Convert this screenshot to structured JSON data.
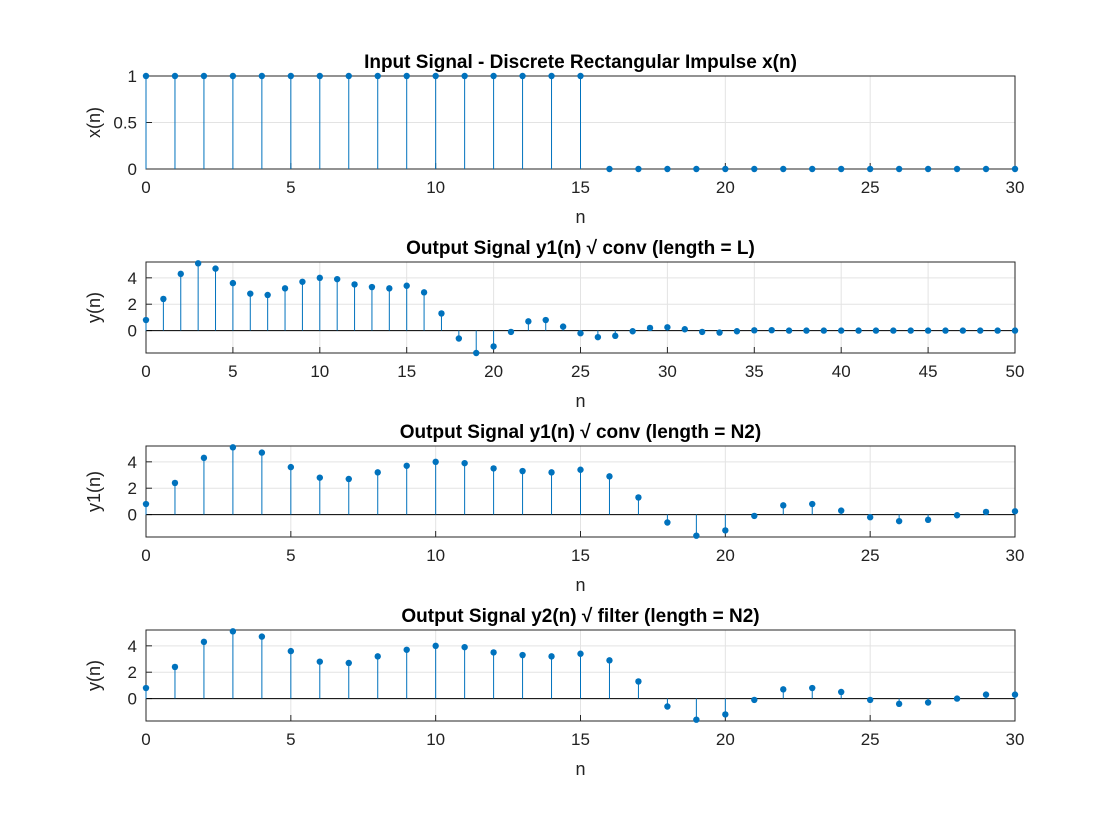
{
  "chart_data": [
    {
      "type": "stem",
      "title": "Input Signal - Discrete Rectangular Impulse x(n)",
      "xlabel": "n",
      "ylabel": "x(n)",
      "xlim": [
        0,
        30
      ],
      "ylim": [
        0,
        1
      ],
      "xticks": [
        "0",
        "5",
        "10",
        "15",
        "20",
        "25",
        "30"
      ],
      "yticks": [
        "0",
        "0.5",
        "1"
      ],
      "grid": true,
      "color": "#0072BD",
      "x": [
        0,
        1,
        2,
        3,
        4,
        5,
        6,
        7,
        8,
        9,
        10,
        11,
        12,
        13,
        14,
        15,
        16,
        17,
        18,
        19,
        20,
        21,
        22,
        23,
        24,
        25,
        26,
        27,
        28,
        29,
        30
      ],
      "values": [
        1,
        1,
        1,
        1,
        1,
        1,
        1,
        1,
        1,
        1,
        1,
        1,
        1,
        1,
        1,
        1,
        0,
        0,
        0,
        0,
        0,
        0,
        0,
        0,
        0,
        0,
        0,
        0,
        0,
        0,
        0
      ]
    },
    {
      "type": "stem",
      "title": "Output Signal y1(n) √ conv (length = L)",
      "xlabel": "n",
      "ylabel": "y(n)",
      "xlim": [
        0,
        50
      ],
      "ylim": [
        -1.7,
        5.2
      ],
      "xticks": [
        "0",
        "5",
        "10",
        "15",
        "20",
        "25",
        "30",
        "35",
        "40",
        "45",
        "50"
      ],
      "yticks": [
        "0",
        "2",
        "4"
      ],
      "grid": true,
      "color": "#0072BD",
      "x": [
        0,
        1,
        2,
        3,
        4,
        5,
        6,
        7,
        8,
        9,
        10,
        11,
        12,
        13,
        14,
        15,
        16,
        17,
        18,
        19,
        20,
        21,
        22,
        23,
        24,
        25,
        26,
        27,
        28,
        29,
        30,
        31,
        32,
        33,
        34,
        35,
        36,
        37,
        38,
        39,
        40,
        41,
        42,
        43,
        44,
        45,
        46,
        47,
        48,
        49,
        50
      ],
      "values": [
        0.8,
        2.4,
        4.3,
        5.1,
        4.7,
        3.6,
        2.8,
        2.7,
        3.2,
        3.7,
        4.0,
        3.9,
        3.5,
        3.3,
        3.2,
        3.4,
        2.9,
        1.3,
        -0.6,
        -1.7,
        -1.2,
        -0.1,
        0.7,
        0.8,
        0.3,
        -0.2,
        -0.5,
        -0.4,
        -0.05,
        0.2,
        0.25,
        0.1,
        -0.1,
        -0.15,
        -0.05,
        0.02,
        0.03,
        0,
        0,
        0,
        0,
        0,
        0,
        0,
        0,
        0,
        0,
        0,
        0,
        0,
        0
      ]
    },
    {
      "type": "stem",
      "title": "Output Signal y1(n) √ conv (length = N2)",
      "xlabel": "n",
      "ylabel": "y1(n)",
      "xlim": [
        0,
        30
      ],
      "ylim": [
        -1.7,
        5.2
      ],
      "xticks": [
        "0",
        "5",
        "10",
        "15",
        "20",
        "25",
        "30"
      ],
      "yticks": [
        "0",
        "2",
        "4"
      ],
      "grid": true,
      "color": "#0072BD",
      "x": [
        0,
        1,
        2,
        3,
        4,
        5,
        6,
        7,
        8,
        9,
        10,
        11,
        12,
        13,
        14,
        15,
        16,
        17,
        18,
        19,
        20,
        21,
        22,
        23,
        24,
        25,
        26,
        27,
        28,
        29,
        30
      ],
      "values": [
        0.8,
        2.4,
        4.3,
        5.1,
        4.7,
        3.6,
        2.8,
        2.7,
        3.2,
        3.7,
        4.0,
        3.9,
        3.5,
        3.3,
        3.2,
        3.4,
        2.9,
        1.3,
        -0.6,
        -1.6,
        -1.2,
        -0.1,
        0.7,
        0.8,
        0.3,
        -0.2,
        -0.5,
        -0.4,
        -0.05,
        0.2,
        0.25
      ]
    },
    {
      "type": "stem",
      "title": "Output Signal y2(n) √ filter (length = N2)",
      "xlabel": "n",
      "ylabel": "y(n)",
      "xlim": [
        0,
        30
      ],
      "ylim": [
        -1.7,
        5.2
      ],
      "xticks": [
        "0",
        "5",
        "10",
        "15",
        "20",
        "25",
        "30"
      ],
      "yticks": [
        "0",
        "2",
        "4"
      ],
      "grid": true,
      "color": "#0072BD",
      "x": [
        0,
        1,
        2,
        3,
        4,
        5,
        6,
        7,
        8,
        9,
        10,
        11,
        12,
        13,
        14,
        15,
        16,
        17,
        18,
        19,
        20,
        21,
        22,
        23,
        24,
        25,
        26,
        27,
        28,
        29,
        30
      ],
      "values": [
        0.8,
        2.4,
        4.3,
        5.1,
        4.7,
        3.6,
        2.8,
        2.7,
        3.2,
        3.7,
        4.0,
        3.9,
        3.5,
        3.3,
        3.2,
        3.4,
        2.9,
        1.3,
        -0.6,
        -1.6,
        -1.2,
        -0.1,
        0.7,
        0.8,
        0.5,
        -0.1,
        -0.4,
        -0.3,
        0,
        0.3,
        0.3
      ]
    }
  ]
}
